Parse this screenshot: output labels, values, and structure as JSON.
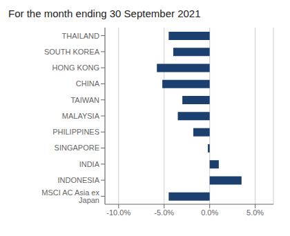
{
  "chart_data": {
    "type": "bar",
    "orientation": "horizontal",
    "title": "For the month ending 30 September 2021",
    "categories": [
      "THAILAND",
      "SOUTH KOREA",
      "HONG KONG",
      "CHINA",
      "TAIWAN",
      "MALAYSIA",
      "PHILIPPINES",
      "SINGAPORE",
      "INDIA",
      "INDONESIA",
      "MSCI AC Asia ex Japan"
    ],
    "values": [
      -4.5,
      -4.0,
      -5.8,
      -5.2,
      -3.0,
      -3.5,
      -1.8,
      -0.2,
      1.0,
      3.5,
      -4.5
    ],
    "color": "#1b3f6e",
    "xlim": [
      -11.5,
      7.0
    ],
    "xticks": [
      {
        "value": -10,
        "label": "-10.0%"
      },
      {
        "value": -5,
        "label": "-5.0%"
      },
      {
        "value": 0,
        "label": "0.0%"
      },
      {
        "value": 5,
        "label": "5.0%"
      }
    ],
    "grid": true
  }
}
